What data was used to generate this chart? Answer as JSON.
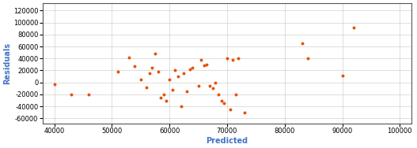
{
  "predicted": [
    40000,
    43000,
    46000,
    51000,
    53000,
    54000,
    55000,
    56000,
    56500,
    57000,
    57500,
    58000,
    58500,
    59000,
    59500,
    60000,
    60500,
    61000,
    61500,
    62000,
    62500,
    63000,
    63500,
    64000,
    65000,
    65500,
    66000,
    66500,
    67000,
    67500,
    68000,
    68500,
    69000,
    69500,
    70000,
    70500,
    71000,
    71500,
    72000,
    73000,
    83000,
    84000,
    90000,
    92000
  ],
  "residuals": [
    -3000,
    -20000,
    -20000,
    18000,
    42000,
    27000,
    5000,
    -8000,
    15000,
    25000,
    48000,
    18000,
    -25000,
    -20000,
    -30000,
    5000,
    -12000,
    20000,
    10000,
    -40000,
    15000,
    -15000,
    22000,
    25000,
    -5000,
    38000,
    28000,
    30000,
    -5000,
    -10000,
    0,
    -20000,
    -30000,
    -35000,
    40000,
    -45000,
    38000,
    -20000,
    40000,
    -50000,
    65000,
    40000,
    12000,
    92000
  ],
  "point_color": "#e8500a",
  "point_size": 8,
  "xlabel": "Predicted",
  "ylabel": "Residuals",
  "xlim": [
    38000,
    102000
  ],
  "ylim": [
    -68000,
    132000
  ],
  "xticks": [
    40000,
    50000,
    60000,
    70000,
    80000,
    90000,
    100000
  ],
  "yticks": [
    -60000,
    -40000,
    -20000,
    0,
    20000,
    40000,
    60000,
    80000,
    100000,
    120000
  ],
  "grid": true,
  "bg_color": "#ffffff",
  "xlabel_fontsize": 7,
  "ylabel_fontsize": 7,
  "tick_fontsize": 6
}
